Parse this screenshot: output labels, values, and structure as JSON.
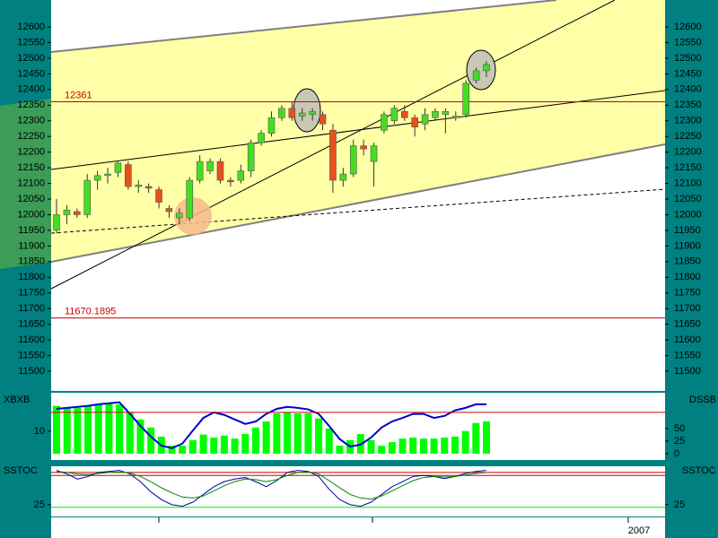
{
  "chart_data": [
    {
      "type": "candlestick",
      "open": [
        11950,
        12000,
        12010,
        12000,
        12110,
        12125,
        12135,
        12160,
        12090,
        12090,
        12080,
        12020,
        11990,
        11990,
        12110,
        12140,
        12170,
        12110,
        12110,
        12140,
        12230,
        12260,
        12310,
        12340,
        12315,
        12320,
        12320,
        12270,
        12110,
        12130,
        12220,
        12170,
        12270,
        12300,
        12330,
        12310,
        12290,
        12310,
        12320,
        12310,
        12320,
        12430,
        12460
      ],
      "high": [
        12050,
        12030,
        12020,
        12130,
        12140,
        12150,
        12170,
        12170,
        12110,
        12100,
        12090,
        12030,
        12020,
        12120,
        12190,
        12180,
        12180,
        12120,
        12160,
        12240,
        12270,
        12330,
        12350,
        12360,
        12340,
        12340,
        12330,
        12290,
        12150,
        12240,
        12240,
        12230,
        12330,
        12350,
        12350,
        12320,
        12340,
        12340,
        12340,
        12330,
        12430,
        12470,
        12490
      ],
      "low": [
        11940,
        11970,
        11990,
        11990,
        12080,
        12100,
        12120,
        12080,
        12070,
        12070,
        12020,
        11990,
        11970,
        11980,
        12100,
        12130,
        12100,
        12090,
        12100,
        12120,
        12220,
        12250,
        12300,
        12300,
        12300,
        12300,
        12270,
        12070,
        12090,
        12120,
        12190,
        12090,
        12260,
        12290,
        12300,
        12250,
        12270,
        12300,
        12260,
        12300,
        12310,
        12420,
        12440
      ],
      "close": [
        12000,
        12015,
        12000,
        12110,
        12125,
        12130,
        12165,
        12090,
        12095,
        12085,
        12040,
        12010,
        12005,
        12110,
        12170,
        12170,
        12110,
        12105,
        12140,
        12230,
        12260,
        12310,
        12340,
        12310,
        12325,
        12330,
        12290,
        12110,
        12130,
        12220,
        12210,
        12220,
        12320,
        12340,
        12310,
        12280,
        12320,
        12330,
        12330,
        12315,
        12420,
        12460,
        12480
      ],
      "up_color": "#44dd22",
      "down_color": "#e8501c",
      "ylim": [
        11437,
        12686
      ],
      "yticks": [
        11500,
        11550,
        11600,
        11650,
        11700,
        11750,
        11800,
        11850,
        11900,
        11950,
        12000,
        12050,
        12100,
        12150,
        12200,
        12250,
        12300,
        12350,
        12400,
        12450,
        12500,
        12550,
        12600
      ],
      "levels": [
        12361,
        11670.1895
      ],
      "level_color": "#cc0000"
    },
    {
      "type": "bar_line",
      "left_title": "XBXB",
      "right_title": "DSSB",
      "ylim": [
        -3.9,
        28.7
      ],
      "yticks": [
        10
      ],
      "y2lim": [
        -12.5,
        121
      ],
      "y2ticks": [
        0,
        25,
        50
      ],
      "series": [
        {
          "type": "bar",
          "color": "#00ff00",
          "axis": "y2",
          "values": [
            95,
            91,
            91,
            95,
            98,
            100,
            98,
            82,
            68,
            52,
            34,
            16,
            16,
            27,
            38,
            32,
            36,
            30,
            39,
            52,
            64,
            80,
            82,
            80,
            80,
            70,
            50,
            16,
            27,
            39,
            27,
            16,
            23,
            30,
            32,
            30,
            30,
            32,
            34,
            45,
            61,
            64
          ]
        },
        {
          "type": "line",
          "color": "#0000cc",
          "axis": "y2",
          "values": [
            89,
            91,
            93,
            95,
            98,
            100,
            102,
            79,
            55,
            34,
            16,
            11,
            20,
            46,
            71,
            82,
            77,
            68,
            59,
            64,
            79,
            89,
            93,
            91,
            88,
            79,
            55,
            29,
            14,
            18,
            32,
            52,
            64,
            71,
            79,
            79,
            71,
            75,
            86,
            91,
            98,
            98
          ]
        }
      ],
      "levels": [
        82
      ],
      "level_color": "#cc0000"
    },
    {
      "type": "line",
      "left_title": "SSTOC",
      "right_title": "SSTOC",
      "ylim": [
        2,
        100
      ],
      "yticks": [
        25
      ],
      "y2lim": [
        2,
        100
      ],
      "y2ticks": [
        25
      ],
      "series": [
        {
          "type": "line",
          "color": "#0000aa",
          "values": [
            92,
            85,
            75,
            80,
            88,
            90,
            92,
            85,
            70,
            50,
            35,
            25,
            22,
            30,
            45,
            60,
            70,
            75,
            78,
            70,
            60,
            72,
            88,
            92,
            90,
            80,
            55,
            35,
            25,
            22,
            30,
            45,
            60,
            70,
            80,
            82,
            80,
            76,
            80,
            86,
            90,
            92
          ]
        },
        {
          "type": "line",
          "color": "#008800",
          "values": [
            90,
            88,
            85,
            84,
            86,
            88,
            89,
            87,
            80,
            70,
            58,
            48,
            40,
            38,
            42,
            52,
            62,
            70,
            75,
            74,
            70,
            74,
            82,
            88,
            89,
            85,
            72,
            58,
            45,
            38,
            36,
            42,
            52,
            62,
            72,
            78,
            80,
            79,
            80,
            83,
            86,
            88
          ]
        }
      ],
      "levels": [
        88,
        82,
        20
      ],
      "level_colors": [
        "#cc0000",
        "#cc0000",
        "#00ee00"
      ],
      "x_label": "2007"
    }
  ]
}
